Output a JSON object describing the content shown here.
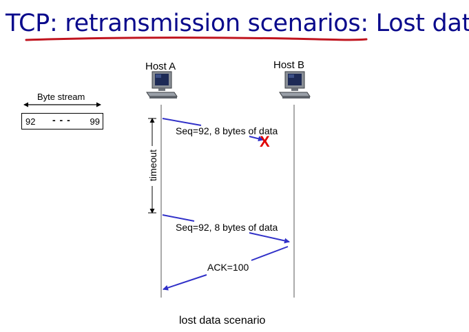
{
  "slide": {
    "title": "TCP: retransmission scenarios: Lost data",
    "caption": "lost data scenario"
  },
  "hosts": {
    "a_label": "Host A",
    "b_label": "Host B"
  },
  "byte_stream": {
    "label": "Byte stream",
    "start": "92",
    "ellipsis": "- - -",
    "end": "99"
  },
  "timeline": {
    "timeout_label": "timeout"
  },
  "messages": [
    {
      "label": "Seq=92, 8 bytes of data",
      "direction": "A-to-B",
      "outcome": "lost"
    },
    {
      "label": "Seq=92, 8 bytes of data",
      "direction": "A-to-B",
      "outcome": "delivered"
    },
    {
      "label": "ACK=100",
      "direction": "B-to-A",
      "outcome": "delivered"
    }
  ],
  "loss_marker": "X",
  "colors": {
    "title": "#0a0a8c",
    "underline": "#c0141e",
    "arrow": "#3030c8",
    "loss": "#e00000"
  }
}
